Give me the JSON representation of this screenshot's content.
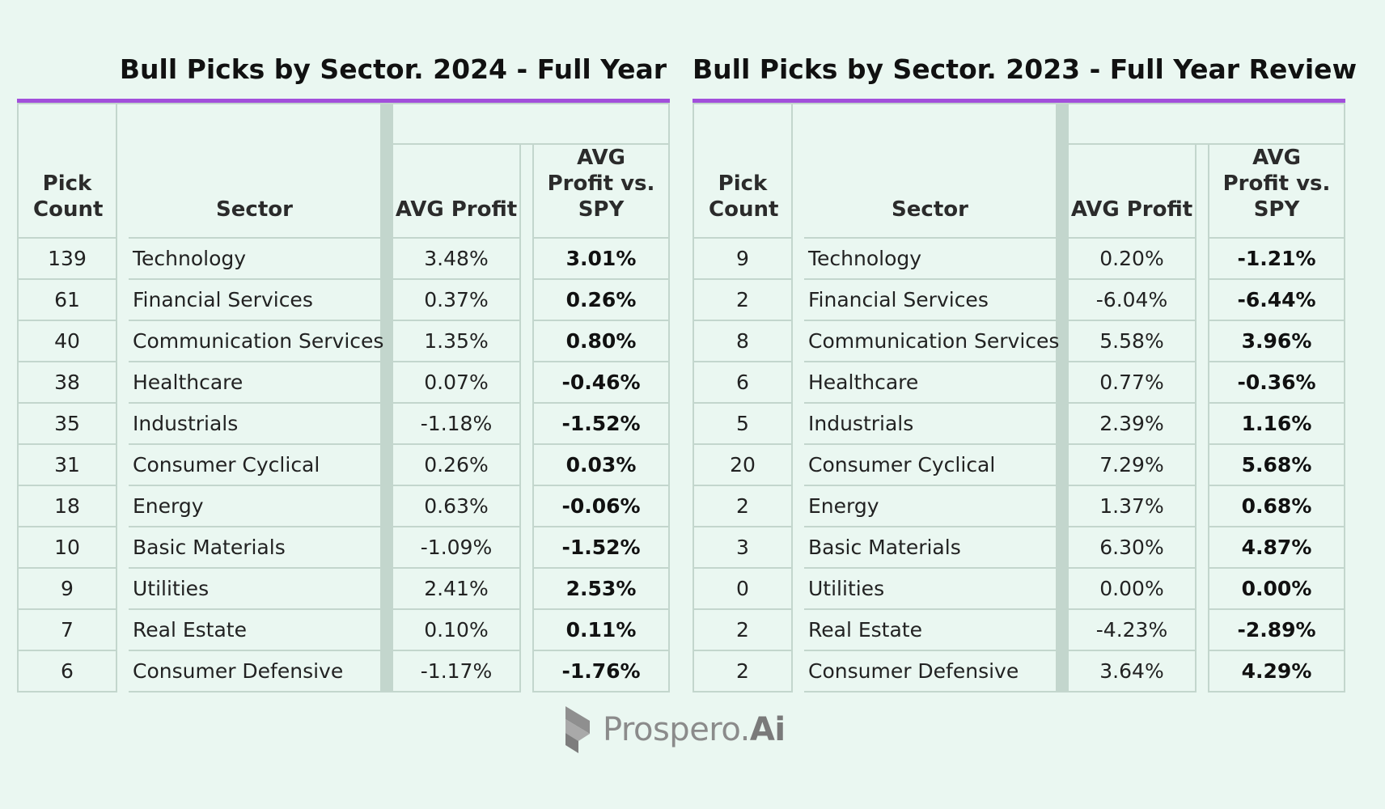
{
  "left": {
    "title": "Bull Picks by Sector.  2024 - Full Year",
    "headers": {
      "pick_count": "Pick Count",
      "sector": "Sector",
      "avg_profit": "AVG Profit",
      "vs_spy": "AVG Profit vs. SPY"
    },
    "rows": [
      {
        "count": "139",
        "sector": "Technology",
        "avg": "3.48%",
        "spy": "3.01%"
      },
      {
        "count": "61",
        "sector": "Financial Services",
        "avg": "0.37%",
        "spy": "0.26%"
      },
      {
        "count": "40",
        "sector": "Communication Services",
        "avg": "1.35%",
        "spy": "0.80%"
      },
      {
        "count": "38",
        "sector": "Healthcare",
        "avg": "0.07%",
        "spy": "-0.46%"
      },
      {
        "count": "35",
        "sector": "Industrials",
        "avg": "-1.18%",
        "spy": "-1.52%"
      },
      {
        "count": "31",
        "sector": "Consumer Cyclical",
        "avg": "0.26%",
        "spy": "0.03%"
      },
      {
        "count": "18",
        "sector": "Energy",
        "avg": "0.63%",
        "spy": "-0.06%"
      },
      {
        "count": "10",
        "sector": "Basic Materials",
        "avg": "-1.09%",
        "spy": "-1.52%"
      },
      {
        "count": "9",
        "sector": "Utilities",
        "avg": "2.41%",
        "spy": "2.53%"
      },
      {
        "count": "7",
        "sector": "Real Estate",
        "avg": "0.10%",
        "spy": "0.11%"
      },
      {
        "count": "6",
        "sector": "Consumer Defensive",
        "avg": "-1.17%",
        "spy": "-1.76%"
      }
    ]
  },
  "right": {
    "title": "Bull Picks by Sector.  2023 - Full Year Review",
    "headers": {
      "pick_count": "Pick Count",
      "sector": "Sector",
      "avg_profit": "AVG Profit",
      "vs_spy": "AVG Profit vs. SPY"
    },
    "rows": [
      {
        "count": "9",
        "sector": "Technology",
        "avg": "0.20%",
        "spy": "-1.21%"
      },
      {
        "count": "2",
        "sector": "Financial Services",
        "avg": "-6.04%",
        "spy": "-6.44%"
      },
      {
        "count": "8",
        "sector": "Communication Services",
        "avg": "5.58%",
        "spy": "3.96%"
      },
      {
        "count": "6",
        "sector": "Healthcare",
        "avg": "0.77%",
        "spy": "-0.36%"
      },
      {
        "count": "5",
        "sector": "Industrials",
        "avg": "2.39%",
        "spy": "1.16%"
      },
      {
        "count": "20",
        "sector": "Consumer Cyclical",
        "avg": "7.29%",
        "spy": "5.68%"
      },
      {
        "count": "2",
        "sector": "Energy",
        "avg": "1.37%",
        "spy": "0.68%"
      },
      {
        "count": "3",
        "sector": "Basic Materials",
        "avg": "6.30%",
        "spy": "4.87%"
      },
      {
        "count": "0",
        "sector": "Utilities",
        "avg": "0.00%",
        "spy": "0.00%"
      },
      {
        "count": "2",
        "sector": "Real Estate",
        "avg": "-4.23%",
        "spy": "-2.89%"
      },
      {
        "count": "2",
        "sector": "Consumer Defensive",
        "avg": "3.64%",
        "spy": "4.29%"
      }
    ]
  },
  "logo": {
    "text_main": "Prospero.",
    "text_accent": "Ai",
    "icon": "prospero-logo-icon"
  }
}
